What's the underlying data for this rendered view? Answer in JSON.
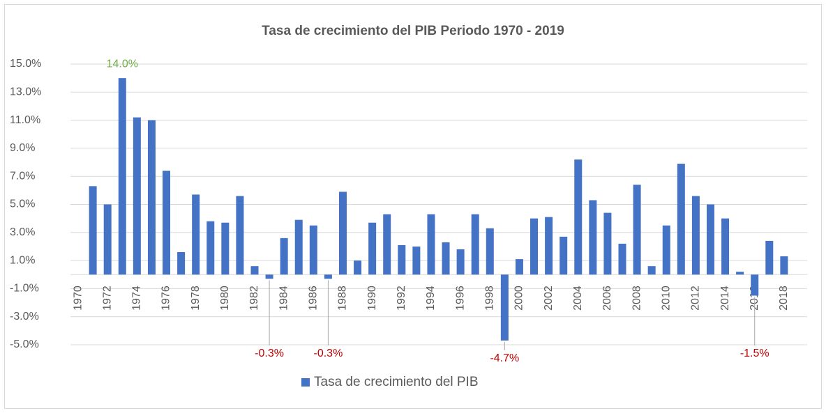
{
  "chart_data": {
    "type": "bar",
    "title": "Tasa de crecimiento del PIB Periodo 1970 - 2019",
    "categories": [
      "1970",
      null,
      "1972",
      null,
      "1974",
      null,
      "1976",
      null,
      "1978",
      null,
      "1980",
      null,
      "1982",
      null,
      "1984",
      null,
      "1986",
      null,
      "1988",
      null,
      "1990",
      null,
      "1992",
      null,
      "1994",
      null,
      "1996",
      null,
      "1998",
      null,
      "2000",
      null,
      "2002",
      null,
      "2004",
      null,
      "2006",
      null,
      "2008",
      null,
      "2010",
      null,
      "2012",
      null,
      "2014",
      null,
      "2016",
      null,
      "2018"
    ],
    "series": [
      {
        "name": "Tasa de crecimiento del PIB",
        "color": "#4472c4",
        "values": [
          null,
          6.3,
          5.0,
          14.0,
          11.2,
          11.0,
          7.4,
          1.6,
          5.7,
          3.8,
          3.7,
          5.6,
          0.6,
          -0.3,
          2.6,
          3.9,
          3.5,
          -0.3,
          5.9,
          1.0,
          3.7,
          4.3,
          2.1,
          2.0,
          4.3,
          2.3,
          1.8,
          4.3,
          3.3,
          -4.7,
          1.1,
          4.0,
          4.1,
          2.7,
          8.2,
          5.3,
          4.4,
          2.2,
          6.4,
          0.6,
          3.5,
          7.9,
          5.6,
          5.0,
          4.0,
          0.2,
          -1.5,
          2.4,
          1.3
        ],
        "value_labels": [
          null,
          null,
          null,
          "14.0%",
          null,
          null,
          null,
          null,
          null,
          null,
          null,
          null,
          null,
          "-0.3%",
          null,
          null,
          null,
          "-0.3%",
          null,
          null,
          null,
          null,
          null,
          null,
          null,
          null,
          null,
          null,
          null,
          "-4.7%",
          null,
          null,
          null,
          null,
          null,
          null,
          null,
          null,
          null,
          null,
          null,
          null,
          null,
          null,
          null,
          null,
          "-1.5%",
          null,
          null
        ]
      }
    ],
    "value_label_color": {
      "positive": "#70ad47",
      "negative": "#c00000"
    },
    "ylim": [
      -5,
      15
    ],
    "yticks": [
      {
        "value": -5,
        "label": "-5.0%"
      },
      {
        "value": -3,
        "label": "-3.0%"
      },
      {
        "value": -1,
        "label": "-1.0%"
      },
      {
        "value": 1,
        "label": "1.0%"
      },
      {
        "value": 3,
        "label": "3.0%"
      },
      {
        "value": 5,
        "label": "5.0%"
      },
      {
        "value": 7,
        "label": "7.0%"
      },
      {
        "value": 9,
        "label": "9.0%"
      },
      {
        "value": 11,
        "label": "11.0%"
      },
      {
        "value": 13,
        "label": "13.0%"
      },
      {
        "value": 15,
        "label": "15.0%"
      }
    ],
    "grid": true,
    "legend": "bottom"
  }
}
